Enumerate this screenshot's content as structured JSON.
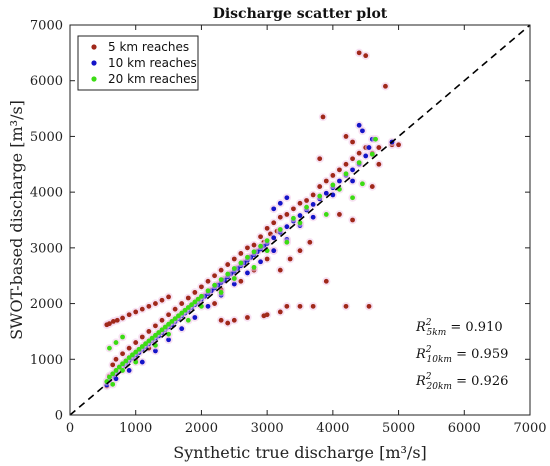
{
  "chart_data": {
    "type": "scatter",
    "title": "Discharge scatter plot",
    "xlabel": "Synthetic true discharge [m³/s]",
    "ylabel": "SWOT-based discharge [m³/s]",
    "xlim": [
      0,
      7000
    ],
    "ylim": [
      0,
      7000
    ],
    "xticks": [
      "0",
      "1000",
      "2000",
      "3000",
      "4000",
      "5000",
      "6000",
      "7000"
    ],
    "yticks": [
      "0",
      "1000",
      "2000",
      "3000",
      "4000",
      "5000",
      "6000",
      "7000"
    ],
    "reference_line": {
      "style": "dashed",
      "color": "#000000",
      "from": [
        0,
        0
      ],
      "to": [
        7000,
        7000
      ]
    },
    "legend_position": "top-left",
    "grid": false,
    "series": [
      {
        "name": "5 km reaches",
        "color": "#a0281a",
        "halo": "#f0c8e8",
        "points": [
          [
            560,
            1620
          ],
          [
            600,
            1640
          ],
          [
            660,
            1680
          ],
          [
            720,
            1700
          ],
          [
            800,
            1740
          ],
          [
            900,
            1800
          ],
          [
            1000,
            1850
          ],
          [
            1100,
            1900
          ],
          [
            1200,
            1950
          ],
          [
            1300,
            2000
          ],
          [
            1400,
            2060
          ],
          [
            1500,
            2120
          ],
          [
            560,
            520
          ],
          [
            600,
            700
          ],
          [
            650,
            900
          ],
          [
            700,
            1000
          ],
          [
            760,
            850
          ],
          [
            800,
            1100
          ],
          [
            850,
            950
          ],
          [
            900,
            1200
          ],
          [
            950,
            1050
          ],
          [
            1000,
            1300
          ],
          [
            1050,
            1150
          ],
          [
            1100,
            1400
          ],
          [
            1150,
            1250
          ],
          [
            1200,
            1500
          ],
          [
            1250,
            1350
          ],
          [
            1300,
            1600
          ],
          [
            1350,
            1450
          ],
          [
            1400,
            1700
          ],
          [
            1450,
            1550
          ],
          [
            1500,
            1800
          ],
          [
            1550,
            1650
          ],
          [
            1600,
            1900
          ],
          [
            1650,
            1750
          ],
          [
            1700,
            2000
          ],
          [
            1750,
            1850
          ],
          [
            1800,
            2100
          ],
          [
            1850,
            1950
          ],
          [
            1900,
            2200
          ],
          [
            1950,
            2050
          ],
          [
            2000,
            2300
          ],
          [
            2050,
            2150
          ],
          [
            2100,
            2400
          ],
          [
            2150,
            2250
          ],
          [
            2200,
            2500
          ],
          [
            2250,
            2350
          ],
          [
            2300,
            2600
          ],
          [
            2350,
            2450
          ],
          [
            2400,
            2700
          ],
          [
            2450,
            2550
          ],
          [
            2500,
            2800
          ],
          [
            2550,
            2650
          ],
          [
            2600,
            2900
          ],
          [
            2650,
            2750
          ],
          [
            2700,
            3000
          ],
          [
            2750,
            2850
          ],
          [
            2800,
            3050
          ],
          [
            2850,
            2950
          ],
          [
            2900,
            3200
          ],
          [
            2950,
            3100
          ],
          [
            3000,
            3350
          ],
          [
            3050,
            3250
          ],
          [
            3100,
            3450
          ],
          [
            3150,
            3300
          ],
          [
            3200,
            3550
          ],
          [
            3300,
            3600
          ],
          [
            3400,
            3700
          ],
          [
            3500,
            3800
          ],
          [
            3600,
            3850
          ],
          [
            3700,
            3950
          ],
          [
            3800,
            4100
          ],
          [
            3900,
            4200
          ],
          [
            4000,
            4300
          ],
          [
            4100,
            4400
          ],
          [
            4200,
            4500
          ],
          [
            4300,
            4600
          ],
          [
            4400,
            4700
          ],
          [
            4500,
            4800
          ],
          [
            4400,
            6500
          ],
          [
            4500,
            6450
          ],
          [
            4800,
            5900
          ],
          [
            3850,
            5350
          ],
          [
            3800,
            4600
          ],
          [
            4200,
            5000
          ],
          [
            4300,
            4900
          ],
          [
            4600,
            4700
          ],
          [
            4700,
            4800
          ],
          [
            2300,
            1700
          ],
          [
            2400,
            1650
          ],
          [
            2500,
            1700
          ],
          [
            2700,
            1750
          ],
          [
            2950,
            1780
          ],
          [
            3000,
            1800
          ],
          [
            3200,
            1850
          ],
          [
            3300,
            1950
          ],
          [
            3500,
            1950
          ],
          [
            3700,
            1950
          ],
          [
            4200,
            1950
          ],
          [
            4550,
            1950
          ],
          [
            3200,
            2600
          ],
          [
            3350,
            2800
          ],
          [
            3500,
            2950
          ],
          [
            3650,
            3100
          ],
          [
            3900,
            2400
          ],
          [
            4100,
            3600
          ],
          [
            4300,
            3500
          ],
          [
            4600,
            4100
          ],
          [
            4700,
            4500
          ],
          [
            4900,
            4850
          ],
          [
            5000,
            4850
          ],
          [
            2100,
            2200
          ],
          [
            2200,
            2000
          ],
          [
            2300,
            2250
          ],
          [
            2500,
            2450
          ],
          [
            2600,
            2400
          ],
          [
            2800,
            2600
          ],
          [
            3000,
            2800
          ],
          [
            3100,
            2950
          ],
          [
            1200,
            1200
          ],
          [
            1000,
            1000
          ],
          [
            800,
            900
          ]
        ]
      },
      {
        "name": "10 km reaches",
        "color": "#1414c8",
        "halo": "#f0c8e8",
        "points": [
          [
            560,
            540
          ],
          [
            600,
            620
          ],
          [
            650,
            700
          ],
          [
            700,
            760
          ],
          [
            750,
            820
          ],
          [
            800,
            880
          ],
          [
            850,
            930
          ],
          [
            900,
            980
          ],
          [
            950,
            1020
          ],
          [
            1000,
            1080
          ],
          [
            1050,
            1120
          ],
          [
            1100,
            1180
          ],
          [
            1150,
            1230
          ],
          [
            1200,
            1280
          ],
          [
            1250,
            1330
          ],
          [
            1300,
            1380
          ],
          [
            1350,
            1420
          ],
          [
            1400,
            1480
          ],
          [
            1450,
            1530
          ],
          [
            1500,
            1580
          ],
          [
            1550,
            1620
          ],
          [
            1600,
            1680
          ],
          [
            1650,
            1730
          ],
          [
            1700,
            1780
          ],
          [
            1750,
            1830
          ],
          [
            1800,
            1880
          ],
          [
            1850,
            1930
          ],
          [
            1900,
            1980
          ],
          [
            1950,
            2020
          ],
          [
            2000,
            2080
          ],
          [
            2050,
            2130
          ],
          [
            2100,
            2180
          ],
          [
            2150,
            2230
          ],
          [
            2200,
            2280
          ],
          [
            2250,
            2330
          ],
          [
            2300,
            2380
          ],
          [
            2350,
            2420
          ],
          [
            2400,
            2480
          ],
          [
            2450,
            2530
          ],
          [
            2500,
            2580
          ],
          [
            2550,
            2630
          ],
          [
            2600,
            2680
          ],
          [
            2650,
            2730
          ],
          [
            2700,
            2780
          ],
          [
            2750,
            2830
          ],
          [
            2800,
            2880
          ],
          [
            2850,
            2930
          ],
          [
            2900,
            2980
          ],
          [
            2950,
            3030
          ],
          [
            3000,
            3080
          ],
          [
            3100,
            3180
          ],
          [
            3200,
            3280
          ],
          [
            3300,
            3380
          ],
          [
            3400,
            3480
          ],
          [
            3500,
            3580
          ],
          [
            3600,
            3680
          ],
          [
            3700,
            3780
          ],
          [
            3800,
            3880
          ],
          [
            3900,
            3980
          ],
          [
            4000,
            4080
          ],
          [
            4100,
            4200
          ],
          [
            4200,
            4300
          ],
          [
            4300,
            4400
          ],
          [
            4400,
            4500
          ],
          [
            4500,
            4650
          ],
          [
            4550,
            4800
          ],
          [
            4600,
            4950
          ],
          [
            4400,
            5200
          ],
          [
            4450,
            5100
          ],
          [
            4900,
            4900
          ],
          [
            4300,
            4200
          ],
          [
            4000,
            3950
          ],
          [
            3700,
            3550
          ],
          [
            3500,
            3400
          ],
          [
            3300,
            3150
          ],
          [
            3100,
            2950
          ],
          [
            2900,
            2750
          ],
          [
            2700,
            2550
          ],
          [
            2500,
            2350
          ],
          [
            2300,
            2150
          ],
          [
            2100,
            1950
          ],
          [
            1900,
            1750
          ],
          [
            1700,
            1550
          ],
          [
            1500,
            1350
          ],
          [
            1300,
            1150
          ],
          [
            1100,
            950
          ],
          [
            900,
            800
          ],
          [
            700,
            650
          ],
          [
            3100,
            3700
          ],
          [
            3200,
            3800
          ],
          [
            3300,
            3900
          ]
        ]
      },
      {
        "name": "20 km reaches",
        "color": "#3cdc14",
        "halo": "#f0c8e8",
        "points": [
          [
            560,
            600
          ],
          [
            600,
            680
          ],
          [
            650,
            740
          ],
          [
            700,
            800
          ],
          [
            750,
            860
          ],
          [
            800,
            920
          ],
          [
            850,
            970
          ],
          [
            900,
            1030
          ],
          [
            950,
            1080
          ],
          [
            1000,
            1130
          ],
          [
            1050,
            1180
          ],
          [
            1100,
            1230
          ],
          [
            1150,
            1280
          ],
          [
            1200,
            1330
          ],
          [
            1250,
            1380
          ],
          [
            1300,
            1430
          ],
          [
            1350,
            1480
          ],
          [
            1400,
            1530
          ],
          [
            1450,
            1580
          ],
          [
            1500,
            1630
          ],
          [
            1550,
            1680
          ],
          [
            1600,
            1730
          ],
          [
            1650,
            1780
          ],
          [
            1700,
            1830
          ],
          [
            1750,
            1880
          ],
          [
            1800,
            1930
          ],
          [
            1850,
            1980
          ],
          [
            1900,
            2030
          ],
          [
            1950,
            2080
          ],
          [
            2000,
            2130
          ],
          [
            2100,
            2230
          ],
          [
            2200,
            2330
          ],
          [
            2300,
            2430
          ],
          [
            2400,
            2530
          ],
          [
            2500,
            2630
          ],
          [
            2600,
            2730
          ],
          [
            2700,
            2830
          ],
          [
            2800,
            2930
          ],
          [
            2900,
            3030
          ],
          [
            3000,
            3130
          ],
          [
            3200,
            3330
          ],
          [
            3400,
            3530
          ],
          [
            3600,
            3730
          ],
          [
            3800,
            3930
          ],
          [
            4000,
            4130
          ],
          [
            4200,
            4330
          ],
          [
            4400,
            4530
          ],
          [
            4600,
            4680
          ],
          [
            4650,
            4950
          ],
          [
            4300,
            3900
          ],
          [
            3900,
            3600
          ],
          [
            3300,
            3100
          ],
          [
            2800,
            2650
          ],
          [
            2300,
            2200
          ],
          [
            1800,
            1700
          ],
          [
            1300,
            1250
          ],
          [
            800,
            800
          ],
          [
            650,
            550
          ],
          [
            1000,
            950
          ],
          [
            1500,
            1450
          ],
          [
            2000,
            1950
          ],
          [
            2500,
            2450
          ],
          [
            3000,
            2950
          ],
          [
            3500,
            3450
          ],
          [
            4100,
            4050
          ],
          [
            4450,
            4150
          ],
          [
            600,
            1200
          ],
          [
            700,
            1300
          ],
          [
            800,
            1400
          ]
        ]
      }
    ],
    "annotations": [
      {
        "prefix": "R",
        "sup": "2",
        "sub": "5km",
        "value": " = 0.910"
      },
      {
        "prefix": "R",
        "sup": "2",
        "sub": "10km",
        "value": " = 0.959"
      },
      {
        "prefix": "R",
        "sup": "2",
        "sub": "20km",
        "value": " = 0.926"
      }
    ]
  }
}
